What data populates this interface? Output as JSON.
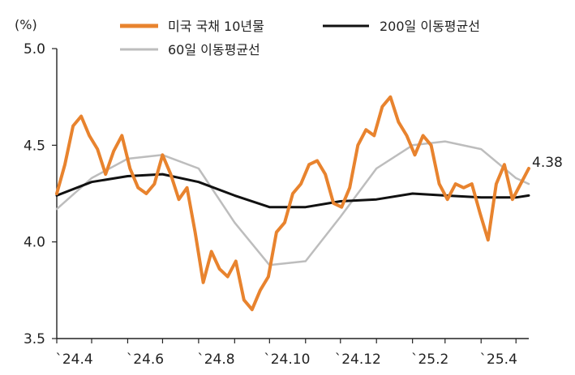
{
  "chart_data": {
    "type": "line",
    "unit_label": "(%)",
    "ylim": [
      3.5,
      5.0
    ],
    "y_ticks": [
      "5.0",
      "4.5",
      "4.0",
      "3.5"
    ],
    "x_ticks": [
      "`24.4",
      "`24.6",
      "`24.8",
      "`24.10",
      "`24.12",
      "`25.2",
      "`25.4"
    ],
    "end_label": "4.38",
    "grid": false,
    "legend_position": "top",
    "series": [
      {
        "name": "미국 국채 10년물",
        "color": "#E8832E",
        "x": [
          "2024-04-01",
          "2024-04-08",
          "2024-04-15",
          "2024-04-22",
          "2024-04-29",
          "2024-05-06",
          "2024-05-13",
          "2024-05-20",
          "2024-05-27",
          "2024-06-03",
          "2024-06-10",
          "2024-06-17",
          "2024-06-24",
          "2024-07-01",
          "2024-07-08",
          "2024-07-15",
          "2024-07-22",
          "2024-07-29",
          "2024-08-05",
          "2024-08-12",
          "2024-08-19",
          "2024-08-26",
          "2024-09-02",
          "2024-09-09",
          "2024-09-16",
          "2024-09-23",
          "2024-09-30",
          "2024-10-07",
          "2024-10-14",
          "2024-10-21",
          "2024-10-28",
          "2024-11-04",
          "2024-11-11",
          "2024-11-18",
          "2024-11-25",
          "2024-12-02",
          "2024-12-09",
          "2024-12-16",
          "2024-12-23",
          "2024-12-30",
          "2025-01-06",
          "2025-01-13",
          "2025-01-20",
          "2025-01-27",
          "2025-02-03",
          "2025-02-10",
          "2025-02-17",
          "2025-02-24",
          "2025-03-03",
          "2025-03-10",
          "2025-03-17",
          "2025-03-24",
          "2025-03-31",
          "2025-04-07",
          "2025-04-14",
          "2025-04-21",
          "2025-04-28",
          "2025-05-05",
          "2025-05-12"
        ],
        "values": [
          4.25,
          4.4,
          4.6,
          4.65,
          4.55,
          4.48,
          4.35,
          4.47,
          4.55,
          4.38,
          4.28,
          4.25,
          4.3,
          4.45,
          4.35,
          4.22,
          4.28,
          4.05,
          3.79,
          3.95,
          3.86,
          3.82,
          3.9,
          3.7,
          3.65,
          3.75,
          3.82,
          4.05,
          4.1,
          4.25,
          4.3,
          4.4,
          4.42,
          4.35,
          4.2,
          4.18,
          4.28,
          4.5,
          4.58,
          4.55,
          4.7,
          4.75,
          4.62,
          4.55,
          4.45,
          4.55,
          4.5,
          4.3,
          4.22,
          4.3,
          4.28,
          4.3,
          4.15,
          4.01,
          4.3,
          4.4,
          4.22,
          4.3,
          4.38
        ]
      },
      {
        "name": "200일 이동평균선",
        "color": "#111111",
        "x": [
          "2024-04-01",
          "2024-05-01",
          "2024-06-01",
          "2024-07-01",
          "2024-08-01",
          "2024-09-01",
          "2024-10-01",
          "2024-11-01",
          "2024-12-01",
          "2025-01-01",
          "2025-02-01",
          "2025-03-01",
          "2025-04-01",
          "2025-05-01",
          "2025-05-12"
        ],
        "values": [
          4.24,
          4.31,
          4.34,
          4.35,
          4.31,
          4.24,
          4.18,
          4.18,
          4.21,
          4.22,
          4.25,
          4.24,
          4.23,
          4.23,
          4.24
        ]
      },
      {
        "name": "60일 이동평균선",
        "color": "#BDBDBD",
        "x": [
          "2024-04-01",
          "2024-05-01",
          "2024-06-01",
          "2024-07-01",
          "2024-08-01",
          "2024-09-01",
          "2024-10-01",
          "2024-11-01",
          "2024-12-01",
          "2025-01-01",
          "2025-02-01",
          "2025-03-01",
          "2025-04-01",
          "2025-05-01",
          "2025-05-12"
        ],
        "values": [
          4.17,
          4.33,
          4.43,
          4.45,
          4.38,
          4.1,
          3.88,
          3.9,
          4.13,
          4.38,
          4.5,
          4.52,
          4.48,
          4.33,
          4.3
        ]
      }
    ]
  }
}
